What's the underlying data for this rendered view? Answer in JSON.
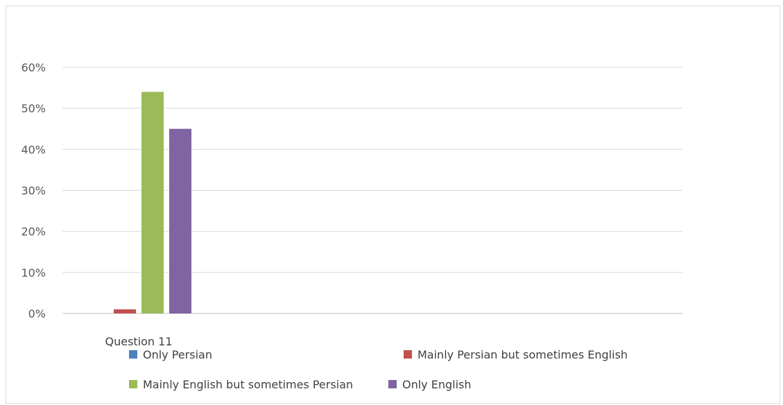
{
  "chart_data": {
    "type": "bar",
    "categories": [
      "Question 11"
    ],
    "series": [
      {
        "name": "Only Persian",
        "values": [
          0
        ],
        "color": "#4f81bd"
      },
      {
        "name": "Mainly Persian but sometimes English",
        "values": [
          0.01
        ],
        "color": "#c0504d"
      },
      {
        "name": "Mainly English but sometimes Persian",
        "values": [
          0.54
        ],
        "color": "#9bbb59"
      },
      {
        "name": "Only English",
        "values": [
          0.45
        ],
        "color": "#8064a2"
      }
    ],
    "ylim": [
      0,
      0.6
    ],
    "yticks": [
      "0%",
      "10%",
      "20%",
      "30%",
      "40%",
      "50%",
      "60%"
    ],
    "grid": true,
    "legend_position": "bottom"
  }
}
